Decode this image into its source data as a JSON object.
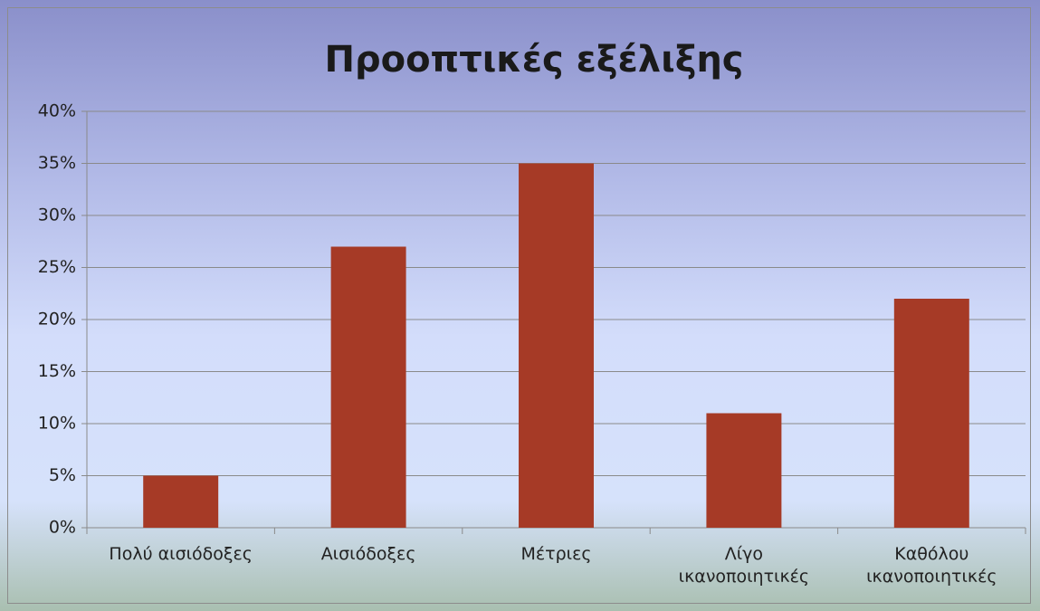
{
  "chart_data": {
    "type": "bar",
    "title": "Προοπτικές εξέλιξης",
    "categories": [
      "Πολύ αισιόδοξες",
      "Αισιόδοξες",
      "Μέτριες",
      "Λίγο ικανοποιητικές",
      "Καθόλου ικανοποιητικές"
    ],
    "values": [
      5,
      27,
      35,
      11,
      22
    ],
    "color": "#a63a26",
    "ylim": [
      0,
      40
    ],
    "yticks": [
      {
        "value": 0,
        "label": "0%"
      },
      {
        "value": 5,
        "label": "5%"
      },
      {
        "value": 10,
        "label": "10%"
      },
      {
        "value": 15,
        "label": "15%"
      },
      {
        "value": 20,
        "label": "20%"
      },
      {
        "value": 25,
        "label": "25%"
      },
      {
        "value": 30,
        "label": "30%"
      },
      {
        "value": 35,
        "label": "35%"
      },
      {
        "value": 40,
        "label": "40%"
      }
    ],
    "grid": true
  }
}
